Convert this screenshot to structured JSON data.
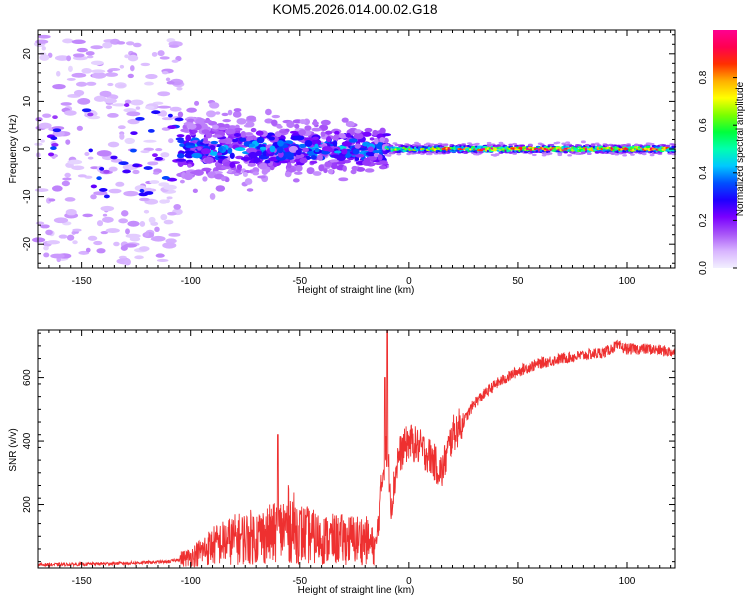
{
  "figure": {
    "title": "KOM5.2026.014.00.02.G18"
  },
  "chart_data": [
    {
      "type": "heatmap",
      "name": "spectrogram",
      "xlabel": "Height of straight line (km)",
      "ylabel": "Frequency (Hz)",
      "xlim": [
        -170,
        122
      ],
      "ylim": [
        -25,
        25
      ],
      "xticks": [
        -150,
        -100,
        -50,
        0,
        50,
        100
      ],
      "yticks": [
        -20,
        -10,
        0,
        10,
        20
      ],
      "colorbar": {
        "label": "Normalized spectral amplitude",
        "range": [
          0,
          1
        ],
        "ticks": [
          "0.0",
          "0.2",
          "0.4",
          "0.6",
          "0.8"
        ],
        "tick_values": [
          0.0,
          0.2,
          0.4,
          0.6,
          0.8
        ],
        "colormap": [
          "#f2f0ff",
          "#d8b4ff",
          "#a855f7",
          "#7a00ff",
          "#1e00ff",
          "#0050ff",
          "#00c8ff",
          "#00ffb0",
          "#00ff3c",
          "#7cff00",
          "#ffff00",
          "#ffb000",
          "#ff3000",
          "#ff0050",
          "#ff0090"
        ]
      },
      "regions": [
        {
          "x": [
            -170,
            -105
          ],
          "freq_spread": 23,
          "amp": [
            0.02,
            0.1
          ],
          "note": "sparse scattered noise"
        },
        {
          "x": [
            -105,
            -10
          ],
          "freq_spread": 7,
          "amp": [
            0.05,
            0.35
          ],
          "note": "diffuse signal cluster"
        },
        {
          "x": [
            -10,
            122
          ],
          "freq_spread": 1.5,
          "amp": [
            0.3,
            1.0
          ],
          "note": "narrow carrier near 0 Hz"
        }
      ]
    },
    {
      "type": "line",
      "name": "snr",
      "xlabel": "Height of straight line (km)",
      "ylabel": "SNR (v/v)",
      "xlim": [
        -170,
        122
      ],
      "ylim": [
        0,
        750
      ],
      "xticks": [
        -150,
        -100,
        -50,
        0,
        50,
        100
      ],
      "yticks": [
        200,
        400,
        600
      ],
      "color": "#ee3030",
      "series": [
        {
          "name": "SNR",
          "x": [
            -170,
            -150,
            -130,
            -110,
            -100,
            -90,
            -80,
            -70,
            -60,
            -55,
            -50,
            -40,
            -30,
            -20,
            -15,
            -12,
            -10,
            -8,
            -5,
            0,
            5,
            10,
            15,
            20,
            25,
            30,
            40,
            50,
            60,
            70,
            80,
            90,
            95,
            100,
            110,
            122
          ],
          "y": [
            10,
            12,
            15,
            20,
            35,
            70,
            90,
            100,
            110,
            140,
            110,
            90,
            90,
            90,
            60,
            300,
            380,
            200,
            350,
            400,
            380,
            350,
            300,
            420,
            460,
            520,
            580,
            620,
            645,
            660,
            670,
            680,
            700,
            690,
            690,
            680
          ]
        }
      ],
      "spikes": [
        {
          "x": -60,
          "y": 420
        },
        {
          "x": -11,
          "y": 600
        },
        {
          "x": -10,
          "y": 750
        }
      ]
    }
  ]
}
